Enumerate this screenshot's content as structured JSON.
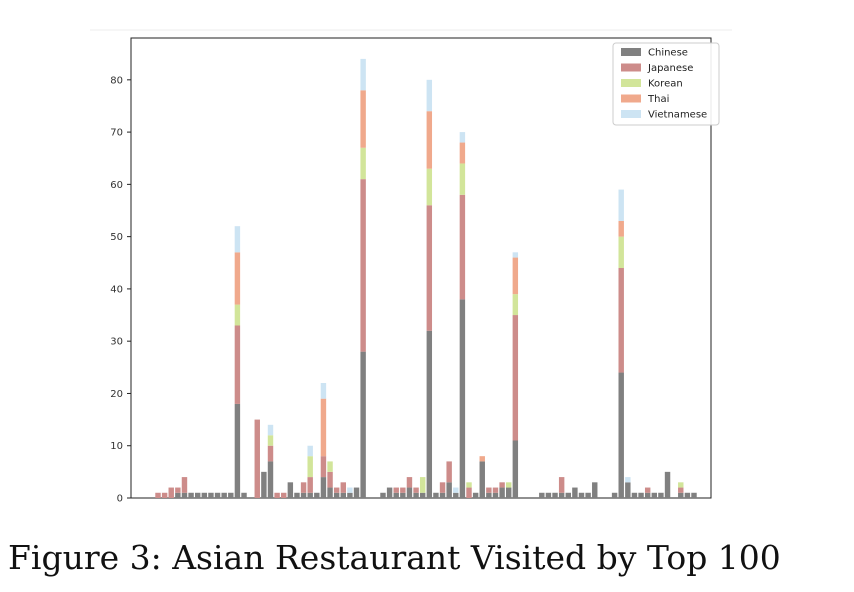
{
  "caption": "Figure 3: Asian Restaurant Visited by Top 100",
  "chart_data": {
    "type": "bar",
    "stacked": true,
    "title": "",
    "xlabel": "",
    "ylabel": "",
    "ylim": [
      0,
      88
    ],
    "yticks": [
      0,
      10,
      20,
      30,
      40,
      50,
      60,
      70,
      80
    ],
    "grid": false,
    "legend_position": "top-right",
    "series": [
      {
        "name": "Chinese",
        "color": "#808080",
        "values": [
          0,
          0,
          0,
          1,
          1,
          1,
          1,
          1,
          1,
          1,
          1,
          1,
          18,
          1,
          0,
          0,
          5,
          7,
          0,
          0,
          3,
          1,
          1,
          1,
          1,
          4,
          2,
          1,
          1,
          1,
          2,
          28,
          0,
          0,
          1,
          2,
          1,
          1,
          2,
          1,
          1,
          32,
          1,
          1,
          3,
          1,
          38,
          0,
          1,
          7,
          1,
          1,
          2,
          2,
          11,
          0,
          0,
          0,
          1,
          1,
          1,
          1,
          1,
          2,
          1,
          1,
          3,
          0,
          0,
          1,
          24,
          3,
          1,
          1,
          1,
          1,
          1,
          5,
          0,
          1,
          1,
          1
        ]
      },
      {
        "name": "Japanese",
        "color": "#cd8c8a",
        "values": [
          1,
          1,
          2,
          1,
          3,
          0,
          0,
          0,
          0,
          0,
          0,
          0,
          15,
          0,
          0,
          15,
          0,
          3,
          1,
          1,
          0,
          0,
          2,
          3,
          0,
          4,
          3,
          1,
          2,
          0,
          0,
          33,
          0,
          0,
          0,
          0,
          1,
          1,
          2,
          1,
          0,
          24,
          0,
          2,
          4,
          0,
          20,
          2,
          0,
          0,
          1,
          1,
          1,
          0,
          24,
          0,
          0,
          0,
          0,
          0,
          0,
          3,
          0,
          0,
          0,
          0,
          0,
          0,
          0,
          0,
          20,
          0,
          0,
          0,
          1,
          0,
          0,
          0,
          0,
          1,
          0,
          0
        ]
      },
      {
        "name": "Korean",
        "color": "#d2e59a",
        "values": [
          0,
          0,
          0,
          0,
          0,
          0,
          0,
          0,
          0,
          0,
          0,
          0,
          4,
          0,
          0,
          0,
          0,
          2,
          0,
          0,
          0,
          0,
          0,
          4,
          0,
          0,
          2,
          0,
          0,
          0,
          0,
          6,
          0,
          0,
          0,
          0,
          0,
          0,
          0,
          0,
          3,
          7,
          0,
          0,
          0,
          0,
          6,
          1,
          0,
          0,
          0,
          0,
          0,
          1,
          4,
          0,
          0,
          0,
          0,
          0,
          0,
          0,
          0,
          0,
          0,
          0,
          0,
          0,
          0,
          0,
          6,
          0,
          0,
          0,
          0,
          0,
          0,
          0,
          0,
          1,
          0,
          0
        ]
      },
      {
        "name": "Thai",
        "color": "#f0a98c",
        "values": [
          0,
          0,
          0,
          0,
          0,
          0,
          0,
          0,
          0,
          0,
          0,
          0,
          10,
          0,
          0,
          0,
          0,
          0,
          0,
          0,
          0,
          0,
          0,
          0,
          0,
          11,
          0,
          0,
          0,
          0,
          0,
          11,
          0,
          0,
          0,
          0,
          0,
          0,
          0,
          0,
          0,
          11,
          0,
          0,
          0,
          0,
          4,
          0,
          0,
          1,
          0,
          0,
          0,
          0,
          7,
          0,
          0,
          0,
          0,
          0,
          0,
          0,
          0,
          0,
          0,
          0,
          0,
          0,
          0,
          0,
          3,
          0,
          0,
          0,
          0,
          0,
          0,
          0,
          0,
          0,
          0,
          0
        ]
      },
      {
        "name": "Vietnamese",
        "color": "#cde4f3",
        "values": [
          0,
          0,
          0,
          0,
          0,
          0,
          0,
          0,
          0,
          0,
          0,
          0,
          5,
          0,
          0,
          0,
          0,
          2,
          0,
          0,
          0,
          0,
          0,
          2,
          0,
          3,
          0,
          0,
          0,
          1,
          0,
          6,
          0,
          0,
          0,
          0,
          0,
          0,
          0,
          0,
          0,
          6,
          0,
          0,
          0,
          1,
          2,
          0,
          0,
          0,
          0,
          0,
          0,
          0,
          1,
          0,
          0,
          0,
          0,
          0,
          0,
          0,
          0,
          0,
          0,
          0,
          0,
          0,
          0,
          0,
          6,
          1,
          0,
          0,
          0,
          0,
          0,
          0,
          0,
          0,
          0,
          0
        ]
      }
    ]
  }
}
